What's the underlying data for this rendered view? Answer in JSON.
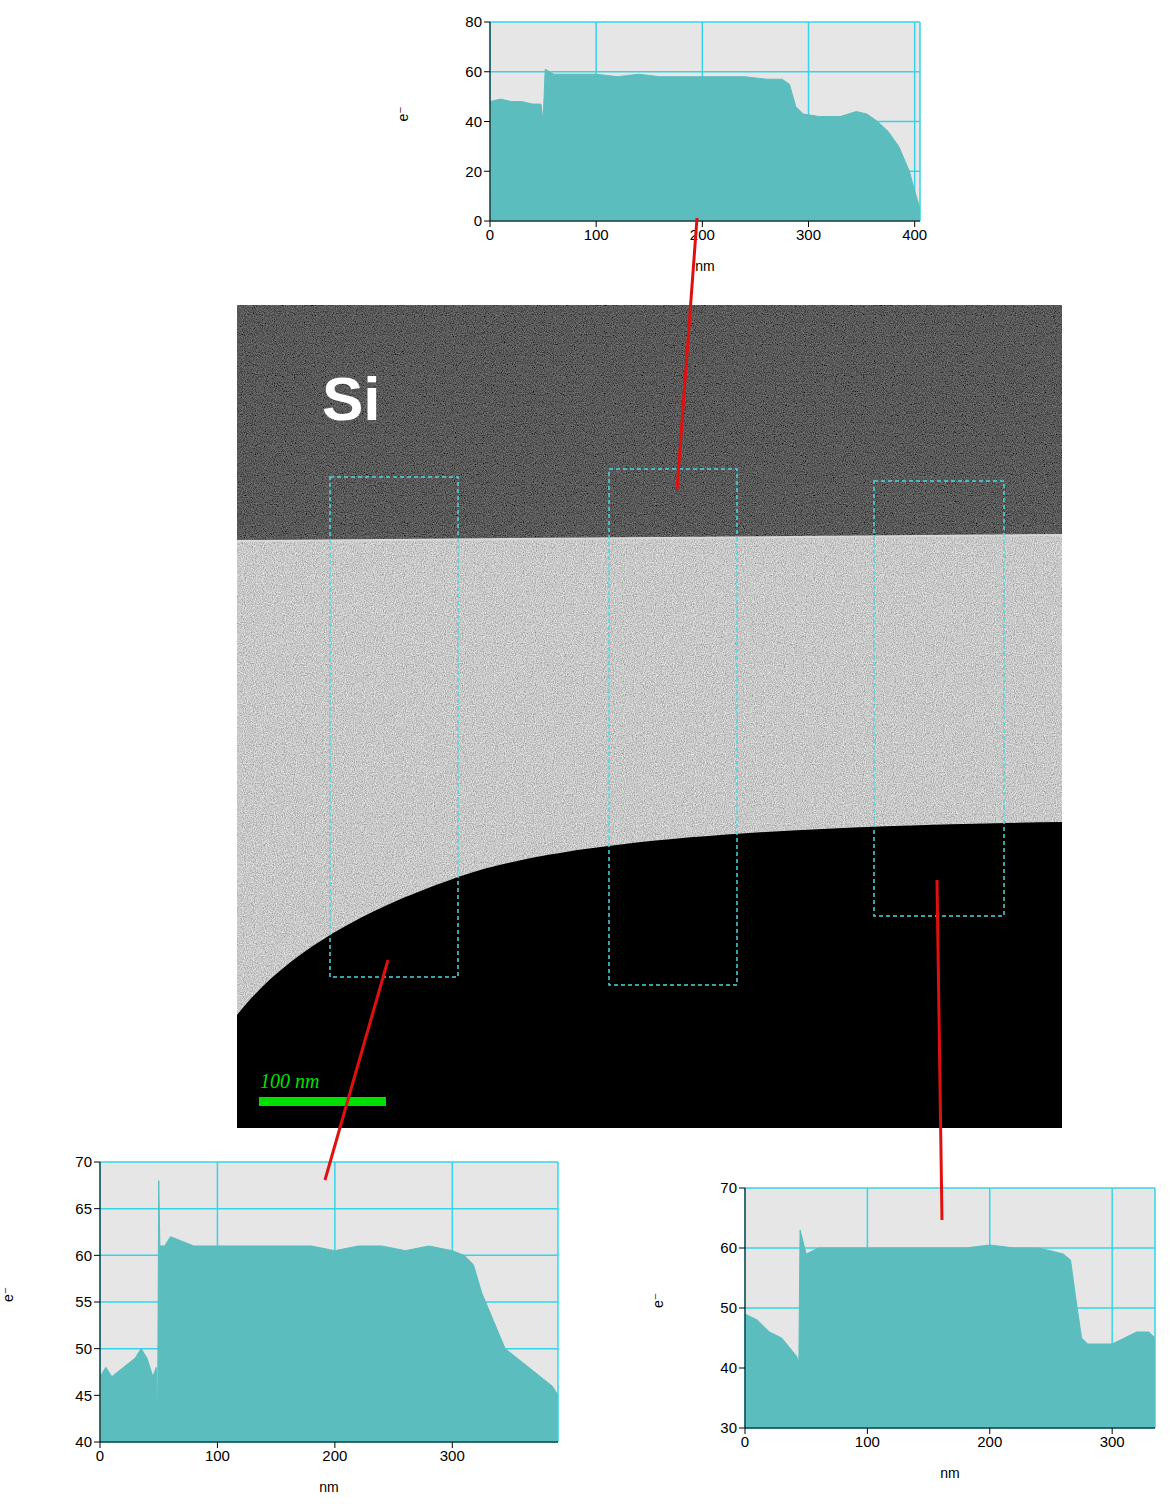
{
  "image": {
    "label": "Si",
    "scale_bar": "100 nm"
  },
  "chart_data": [
    {
      "type": "area",
      "xlabel": "nm",
      "ylabel": "e⁻",
      "color": "#5bbdbd",
      "grid": true,
      "xlim": [
        0,
        405
      ],
      "xticks": [
        0,
        100,
        200,
        300,
        400
      ],
      "ylim": [
        0,
        80
      ],
      "yticks": [
        0,
        20,
        40,
        60,
        80
      ],
      "x": [
        0,
        10,
        20,
        30,
        40,
        48,
        50,
        52,
        60,
        80,
        100,
        120,
        140,
        160,
        180,
        200,
        220,
        240,
        260,
        275,
        282,
        288,
        295,
        310,
        330,
        345,
        355,
        365,
        375,
        385,
        395,
        400,
        405
      ],
      "values": [
        48,
        49,
        48,
        48,
        47,
        47,
        40,
        61,
        59,
        59,
        59,
        58,
        59,
        58,
        58,
        58,
        58,
        58,
        57,
        57,
        55,
        46,
        43,
        42,
        42,
        44,
        43,
        40,
        36,
        30,
        20,
        12,
        5
      ]
    },
    {
      "type": "area",
      "xlabel": "nm",
      "ylabel": "e⁻",
      "color": "#5bbdbd",
      "grid": true,
      "xlim": [
        0,
        390
      ],
      "xticks": [
        0,
        100,
        200,
        300
      ],
      "ylim": [
        40,
        70
      ],
      "yticks": [
        40,
        45,
        50,
        55,
        60,
        65,
        70
      ],
      "x": [
        0,
        5,
        10,
        20,
        30,
        35,
        40,
        45,
        48,
        49,
        50,
        51,
        55,
        60,
        80,
        100,
        120,
        140,
        160,
        180,
        200,
        220,
        240,
        260,
        280,
        300,
        310,
        318,
        325,
        335,
        345,
        355,
        365,
        375,
        385,
        390
      ],
      "values": [
        47,
        48,
        47,
        48,
        49,
        50,
        49,
        47,
        48,
        41.5,
        68,
        61,
        61,
        62,
        61,
        61,
        61,
        61,
        61,
        61,
        60.5,
        61,
        61,
        60.5,
        61,
        60.5,
        60,
        59,
        56,
        53,
        50,
        49,
        48,
        47,
        46,
        45
      ]
    },
    {
      "type": "area",
      "xlabel": "nm",
      "ylabel": "e⁻",
      "color": "#5bbdbd",
      "grid": true,
      "xlim": [
        0,
        335
      ],
      "xticks": [
        0,
        100,
        200,
        300
      ],
      "ylim": [
        30,
        70
      ],
      "yticks": [
        30,
        40,
        50,
        60,
        70
      ],
      "x": [
        0,
        10,
        20,
        30,
        38,
        42,
        44,
        45,
        50,
        60,
        80,
        100,
        120,
        140,
        160,
        180,
        200,
        220,
        240,
        260,
        266,
        270,
        275,
        280,
        290,
        300,
        310,
        320,
        330,
        335
      ],
      "values": [
        49,
        48,
        46,
        45,
        43,
        42,
        41,
        63,
        59,
        60,
        60,
        60,
        60,
        60,
        60,
        60,
        60.5,
        60,
        60,
        59,
        58,
        52,
        45,
        44,
        44,
        44,
        45,
        46,
        46,
        45
      ]
    }
  ]
}
